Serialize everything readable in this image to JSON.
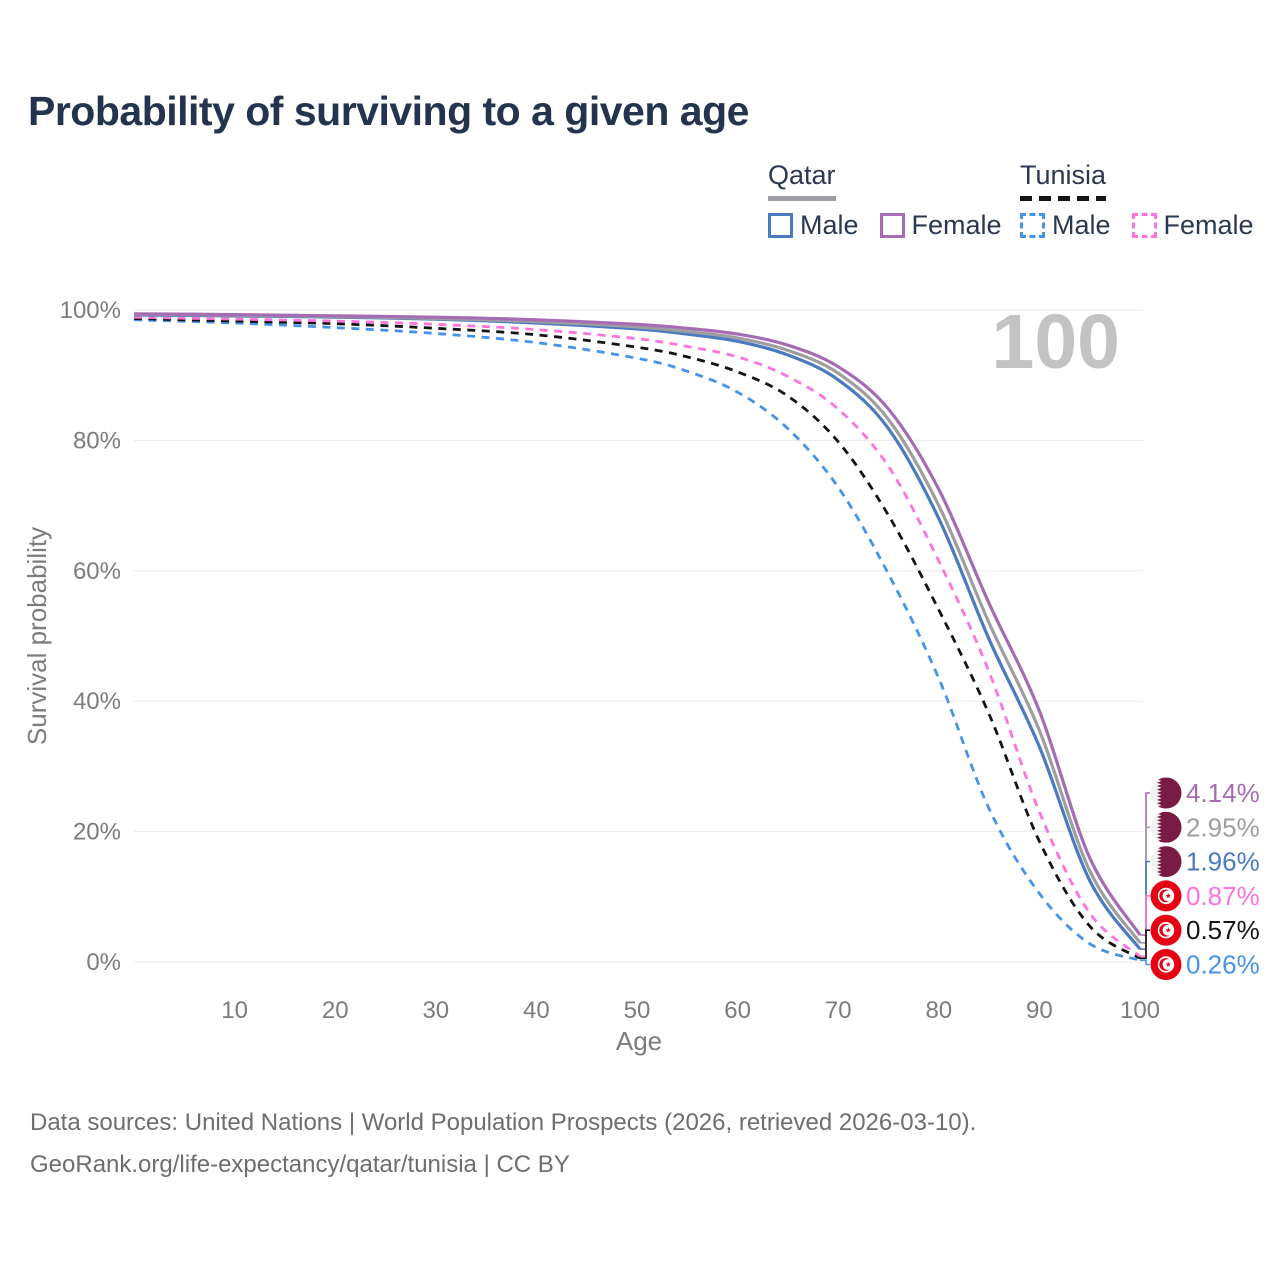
{
  "title": "Probability of surviving to a given age",
  "watermark": "100",
  "colors": {
    "title_text": "#25344e",
    "legend_text": "#2a3950",
    "axis_text": "#7c7c7c",
    "gridline": "#eaeaea",
    "watermark": "#c3c3c3",
    "footer_text": "#6e6e6e",
    "qatar_flag_maroon": "#7a1b43",
    "tunisia_flag_red": "#e70013"
  },
  "legend": {
    "qatar": {
      "name": "Qatar",
      "line_style": "solid",
      "underline_color": "#9e9ea2",
      "male_label": "Male",
      "male_color": "#4a7abf",
      "female_label": "Female",
      "female_color": "#a56cb4"
    },
    "tunisia": {
      "name": "Tunisia",
      "line_style": "dashed",
      "underline_color": "#141414",
      "male_label": "Male",
      "male_color": "#4693ec",
      "female_label": "Female",
      "female_color": "#fc74dc"
    }
  },
  "chart_data": {
    "type": "line",
    "title": "Probability of surviving to a given age",
    "xlabel": "Age",
    "ylabel": "Survival probability",
    "xlim": [
      0,
      100
    ],
    "ylim": [
      0,
      100
    ],
    "x_ticks": [
      10,
      20,
      30,
      40,
      50,
      60,
      70,
      80,
      90,
      100
    ],
    "y_ticks": [
      0,
      20,
      40,
      60,
      80,
      100
    ],
    "y_tick_suffix": "%",
    "grid": "horizontal",
    "legend_position": "top-right",
    "x": [
      0,
      10,
      20,
      30,
      40,
      50,
      55,
      60,
      65,
      70,
      75,
      80,
      85,
      90,
      95,
      100
    ],
    "series": [
      {
        "name": "Tunisia Male",
        "country": "Tunisia",
        "sex": "Male",
        "color": "#4693ec",
        "dashed": true,
        "flag": "tunisia",
        "end_label": "0.26%",
        "values": [
          98.5,
          98.0,
          97.3,
          96.4,
          95.0,
          92.6,
          90.6,
          87.4,
          81.8,
          72.8,
          59.5,
          43.5,
          23.5,
          10.5,
          2.8,
          0.26
        ]
      },
      {
        "name": "Tunisia overall",
        "country": "Tunisia",
        "sex": "Both",
        "color": "#141414",
        "dashed": true,
        "flag": "tunisia",
        "end_label": "0.57%",
        "values": [
          98.7,
          98.3,
          97.9,
          97.2,
          96.2,
          94.3,
          92.8,
          90.5,
          86.8,
          79.8,
          68.5,
          54.0,
          38.0,
          18.5,
          5.5,
          0.57
        ]
      },
      {
        "name": "Tunisia Female",
        "country": "Tunisia",
        "sex": "Female",
        "color": "#fc74dc",
        "dashed": true,
        "flag": "tunisia",
        "end_label": "0.87%",
        "values": [
          98.9,
          98.6,
          98.3,
          97.8,
          97.0,
          95.6,
          94.4,
          92.8,
          89.8,
          84.8,
          76.0,
          61.5,
          44.5,
          23.0,
          7.5,
          0.87
        ]
      },
      {
        "name": "Qatar Male",
        "country": "Qatar",
        "sex": "Male",
        "color": "#4a7abf",
        "dashed": false,
        "flag": "qatar",
        "end_label": "1.96%",
        "values": [
          99.2,
          99.1,
          98.9,
          98.6,
          98.0,
          97.1,
          96.3,
          95.2,
          93.1,
          89.3,
          81.8,
          68.0,
          49.5,
          33.0,
          12.5,
          1.96
        ]
      },
      {
        "name": "Qatar overall",
        "country": "Qatar",
        "sex": "Both",
        "color": "#9e9ea2",
        "dashed": false,
        "flag": "qatar",
        "end_label": "2.95%",
        "values": [
          99.3,
          99.2,
          99.0,
          98.7,
          98.2,
          97.4,
          96.7,
          95.7,
          93.8,
          90.3,
          83.2,
          70.0,
          52.0,
          35.5,
          14.0,
          2.95
        ]
      },
      {
        "name": "Qatar Female",
        "country": "Qatar",
        "sex": "Female",
        "color": "#a56cb4",
        "dashed": false,
        "flag": "qatar",
        "end_label": "4.14%",
        "values": [
          99.4,
          99.3,
          99.1,
          98.9,
          98.5,
          97.8,
          97.2,
          96.3,
          94.6,
          91.3,
          84.8,
          72.5,
          55.0,
          38.5,
          16.0,
          4.14
        ]
      }
    ]
  },
  "footer": {
    "line1": "Data sources: United Nations | World Population Prospects (2026, retrieved 2026-03-10).",
    "line2": "GeoRank.org/life-expectancy/qatar/tunisia | CC BY"
  }
}
